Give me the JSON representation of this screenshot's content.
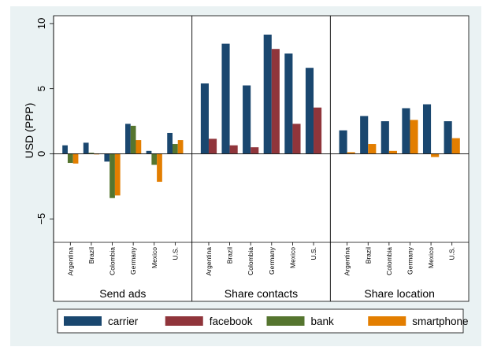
{
  "chart_data": {
    "type": "bar",
    "ylabel": "USD (PPP)",
    "ylim": [
      -6.8,
      10.6
    ],
    "yticks": [
      10,
      5,
      0,
      -5
    ],
    "ytick_labels": [
      "10",
      "5",
      "0",
      "−5"
    ],
    "grid": false,
    "legend_position": "bottom",
    "series": [
      {
        "name": "carrier",
        "color": "#1a476f"
      },
      {
        "name": "facebook",
        "color": "#90353b"
      },
      {
        "name": "bank",
        "color": "#55752f"
      },
      {
        "name": "smartphone",
        "color": "#e37e00"
      }
    ],
    "panels": [
      {
        "title": "Send ads",
        "categories": [
          "Argentina",
          "Brazil",
          "Colombia",
          "Germany",
          "Mexico",
          "U.S."
        ],
        "series_values": {
          "carrier": [
            0.65,
            0.85,
            -0.6,
            2.3,
            0.22,
            1.6
          ],
          "facebook": [
            null,
            null,
            null,
            null,
            null,
            null
          ],
          "bank": [
            -0.7,
            0.08,
            -3.4,
            2.15,
            -0.85,
            0.75
          ],
          "smartphone": [
            -0.75,
            -0.05,
            -3.2,
            1.05,
            -2.15,
            1.05
          ]
        }
      },
      {
        "title": "Share contacts",
        "categories": [
          "Argentina",
          "Brazil",
          "Colombia",
          "Germany",
          "Mexico",
          "U.S."
        ],
        "series_values": {
          "carrier": [
            5.4,
            8.45,
            5.25,
            9.15,
            7.7,
            6.6
          ],
          "facebook": [
            1.15,
            0.65,
            0.5,
            8.05,
            2.3,
            3.55
          ],
          "bank": [
            null,
            null,
            null,
            null,
            null,
            null
          ],
          "smartphone": [
            null,
            null,
            null,
            null,
            null,
            null
          ]
        }
      },
      {
        "title": "Share location",
        "categories": [
          "Argentina",
          "Brazil",
          "Colombia",
          "Germany",
          "Mexico",
          "U.S."
        ],
        "series_values": {
          "carrier": [
            1.8,
            2.9,
            2.5,
            3.5,
            3.8,
            2.5
          ],
          "facebook": [
            null,
            null,
            null,
            null,
            null,
            null
          ],
          "bank": [
            null,
            null,
            null,
            null,
            null,
            null
          ],
          "smartphone": [
            0.12,
            0.75,
            0.22,
            2.6,
            -0.25,
            1.2
          ]
        }
      }
    ]
  }
}
